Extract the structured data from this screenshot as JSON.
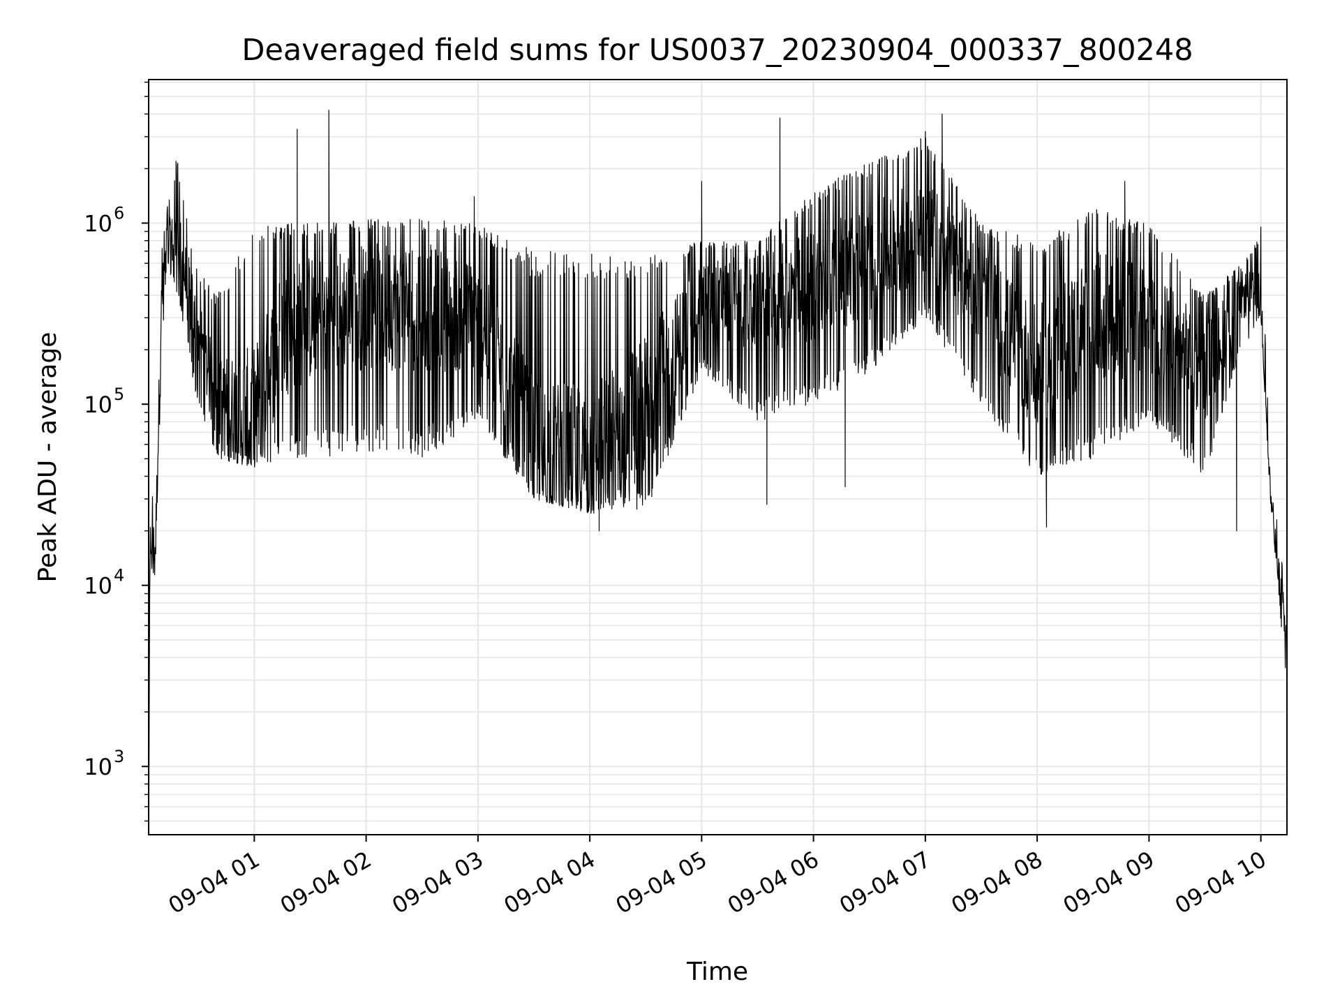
{
  "chart_data": {
    "type": "line",
    "title": "Deaveraged field sums for US0037_20230904_000337_800248",
    "xlabel": "Time",
    "ylabel": "Peak ADU - average",
    "yscale": "log",
    "ylim": [
      420,
      6200000
    ],
    "xlim": [
      "2023-09-04 00:03:20",
      "2023-09-04 10:14:00"
    ],
    "xticks": [
      {
        "value": "2023-09-04 01:00",
        "label": "09-04 01"
      },
      {
        "value": "2023-09-04 02:00",
        "label": "09-04 02"
      },
      {
        "value": "2023-09-04 03:00",
        "label": "09-04 03"
      },
      {
        "value": "2023-09-04 04:00",
        "label": "09-04 04"
      },
      {
        "value": "2023-09-04 05:00",
        "label": "09-04 05"
      },
      {
        "value": "2023-09-04 06:00",
        "label": "09-04 06"
      },
      {
        "value": "2023-09-04 07:00",
        "label": "09-04 07"
      },
      {
        "value": "2023-09-04 08:00",
        "label": "09-04 08"
      },
      {
        "value": "2023-09-04 09:00",
        "label": "09-04 09"
      },
      {
        "value": "2023-09-04 10:00",
        "label": "09-04 10"
      }
    ],
    "yticks": [
      {
        "value": 1000,
        "base": "10",
        "exp": "3"
      },
      {
        "value": 10000,
        "base": "10",
        "exp": "4"
      },
      {
        "value": 100000,
        "base": "10",
        "exp": "5"
      },
      {
        "value": 1000000,
        "base": "10",
        "exp": "6"
      }
    ],
    "grid": true,
    "line_color": "#000000",
    "grid_color": "#e6e6e6",
    "series": [
      {
        "envelope": [
          {
            "t": "2023-09-04 00:03:30",
            "low": 450,
            "high": 1000,
            "mid": 700
          },
          {
            "t": "2023-09-04 00:04:00",
            "low": 12000,
            "high": 28000,
            "mid": 18000
          },
          {
            "t": "2023-09-04 00:07:00",
            "low": 11000,
            "high": 38000,
            "mid": 16000
          },
          {
            "t": "2023-09-04 00:10:00",
            "low": 150000,
            "high": 700000,
            "mid": 300000
          },
          {
            "t": "2023-09-04 00:13:00",
            "low": 600000,
            "high": 1200000,
            "mid": 850000
          },
          {
            "t": "2023-09-04 00:19:00",
            "low": 400000,
            "high": 2200000,
            "mid": 750000
          },
          {
            "t": "2023-09-04 00:28:00",
            "low": 120000,
            "high": 600000,
            "mid": 300000
          },
          {
            "t": "2023-09-04 00:40:00",
            "low": 50000,
            "high": 400000,
            "mid": 100000
          },
          {
            "t": "2023-09-04 01:00:00",
            "low": 45000,
            "high": 1000000,
            "mid": 90000
          },
          {
            "t": "2023-09-04 01:15:00",
            "low": 50000,
            "high": 1000000,
            "mid": 250000
          },
          {
            "t": "2023-09-04 01:30:00",
            "low": 50000,
            "high": 1000000,
            "mid": 300000
          },
          {
            "t": "2023-09-04 02:00:00",
            "low": 55000,
            "high": 1050000,
            "mid": 350000
          },
          {
            "t": "2023-09-04 02:30:00",
            "low": 50000,
            "high": 1050000,
            "mid": 350000
          },
          {
            "t": "2023-09-04 03:00:00",
            "low": 80000,
            "high": 1000000,
            "mid": 300000
          },
          {
            "t": "2023-09-04 03:30:00",
            "low": 30000,
            "high": 700000,
            "mid": 60000
          },
          {
            "t": "2023-09-04 04:00:00",
            "low": 25000,
            "high": 700000,
            "mid": 50000
          },
          {
            "t": "2023-09-04 04:30:00",
            "low": 25000,
            "high": 650000,
            "mid": 100000
          },
          {
            "t": "2023-09-04 05:00:00",
            "low": 150000,
            "high": 800000,
            "mid": 400000
          },
          {
            "t": "2023-09-04 05:30:00",
            "low": 80000,
            "high": 800000,
            "mid": 350000
          },
          {
            "t": "2023-09-04 06:00:00",
            "low": 100000,
            "high": 1500000,
            "mid": 450000
          },
          {
            "t": "2023-09-04 06:30:00",
            "low": 150000,
            "high": 2200000,
            "mid": 600000
          },
          {
            "t": "2023-09-04 07:00:00",
            "low": 300000,
            "high": 3000000,
            "mid": 1000000
          },
          {
            "t": "2023-09-04 07:30:00",
            "low": 100000,
            "high": 1000000,
            "mid": 400000
          },
          {
            "t": "2023-09-04 08:00:00",
            "low": 40000,
            "high": 800000,
            "mid": 150000
          },
          {
            "t": "2023-09-04 08:30:00",
            "low": 50000,
            "high": 1200000,
            "mid": 300000
          },
          {
            "t": "2023-09-04 09:00:00",
            "low": 80000,
            "high": 1000000,
            "mid": 300000
          },
          {
            "t": "2023-09-04 09:30:00",
            "low": 40000,
            "high": 400000,
            "mid": 150000
          },
          {
            "t": "2023-09-04 09:50:00",
            "low": 200000,
            "high": 600000,
            "mid": 400000
          },
          {
            "t": "2023-09-04 10:00:00",
            "low": 300000,
            "high": 900000,
            "mid": 400000
          },
          {
            "t": "2023-09-04 10:05:00",
            "low": 30000,
            "high": 50000,
            "mid": 35000
          },
          {
            "t": "2023-09-04 10:13:30",
            "low": 3000,
            "high": 9000,
            "mid": 5000
          }
        ],
        "peaks": [
          {
            "t": "2023-09-04 00:18:00",
            "value": 2200000
          },
          {
            "t": "2023-09-04 01:23:00",
            "value": 3300000
          },
          {
            "t": "2023-09-04 01:40:00",
            "value": 4200000
          },
          {
            "t": "2023-09-04 02:58:00",
            "value": 1400000
          },
          {
            "t": "2023-09-04 05:00:00",
            "value": 1700000
          },
          {
            "t": "2023-09-04 05:42:00",
            "value": 3800000
          },
          {
            "t": "2023-09-04 07:00:00",
            "value": 3200000
          },
          {
            "t": "2023-09-04 07:09:00",
            "value": 4000000
          },
          {
            "t": "2023-09-04 08:47:00",
            "value": 1700000
          },
          {
            "t": "2023-09-04 10:00:00",
            "value": 950000
          }
        ],
        "dips": [
          {
            "t": "2023-09-04 04:05:00",
            "value": 20000
          },
          {
            "t": "2023-09-04 08:05:00",
            "value": 21000
          },
          {
            "t": "2023-09-04 09:47:00",
            "value": 20000
          },
          {
            "t": "2023-09-04 05:35:00",
            "value": 28000
          },
          {
            "t": "2023-09-04 06:17:00",
            "value": 35000
          }
        ]
      }
    ]
  }
}
